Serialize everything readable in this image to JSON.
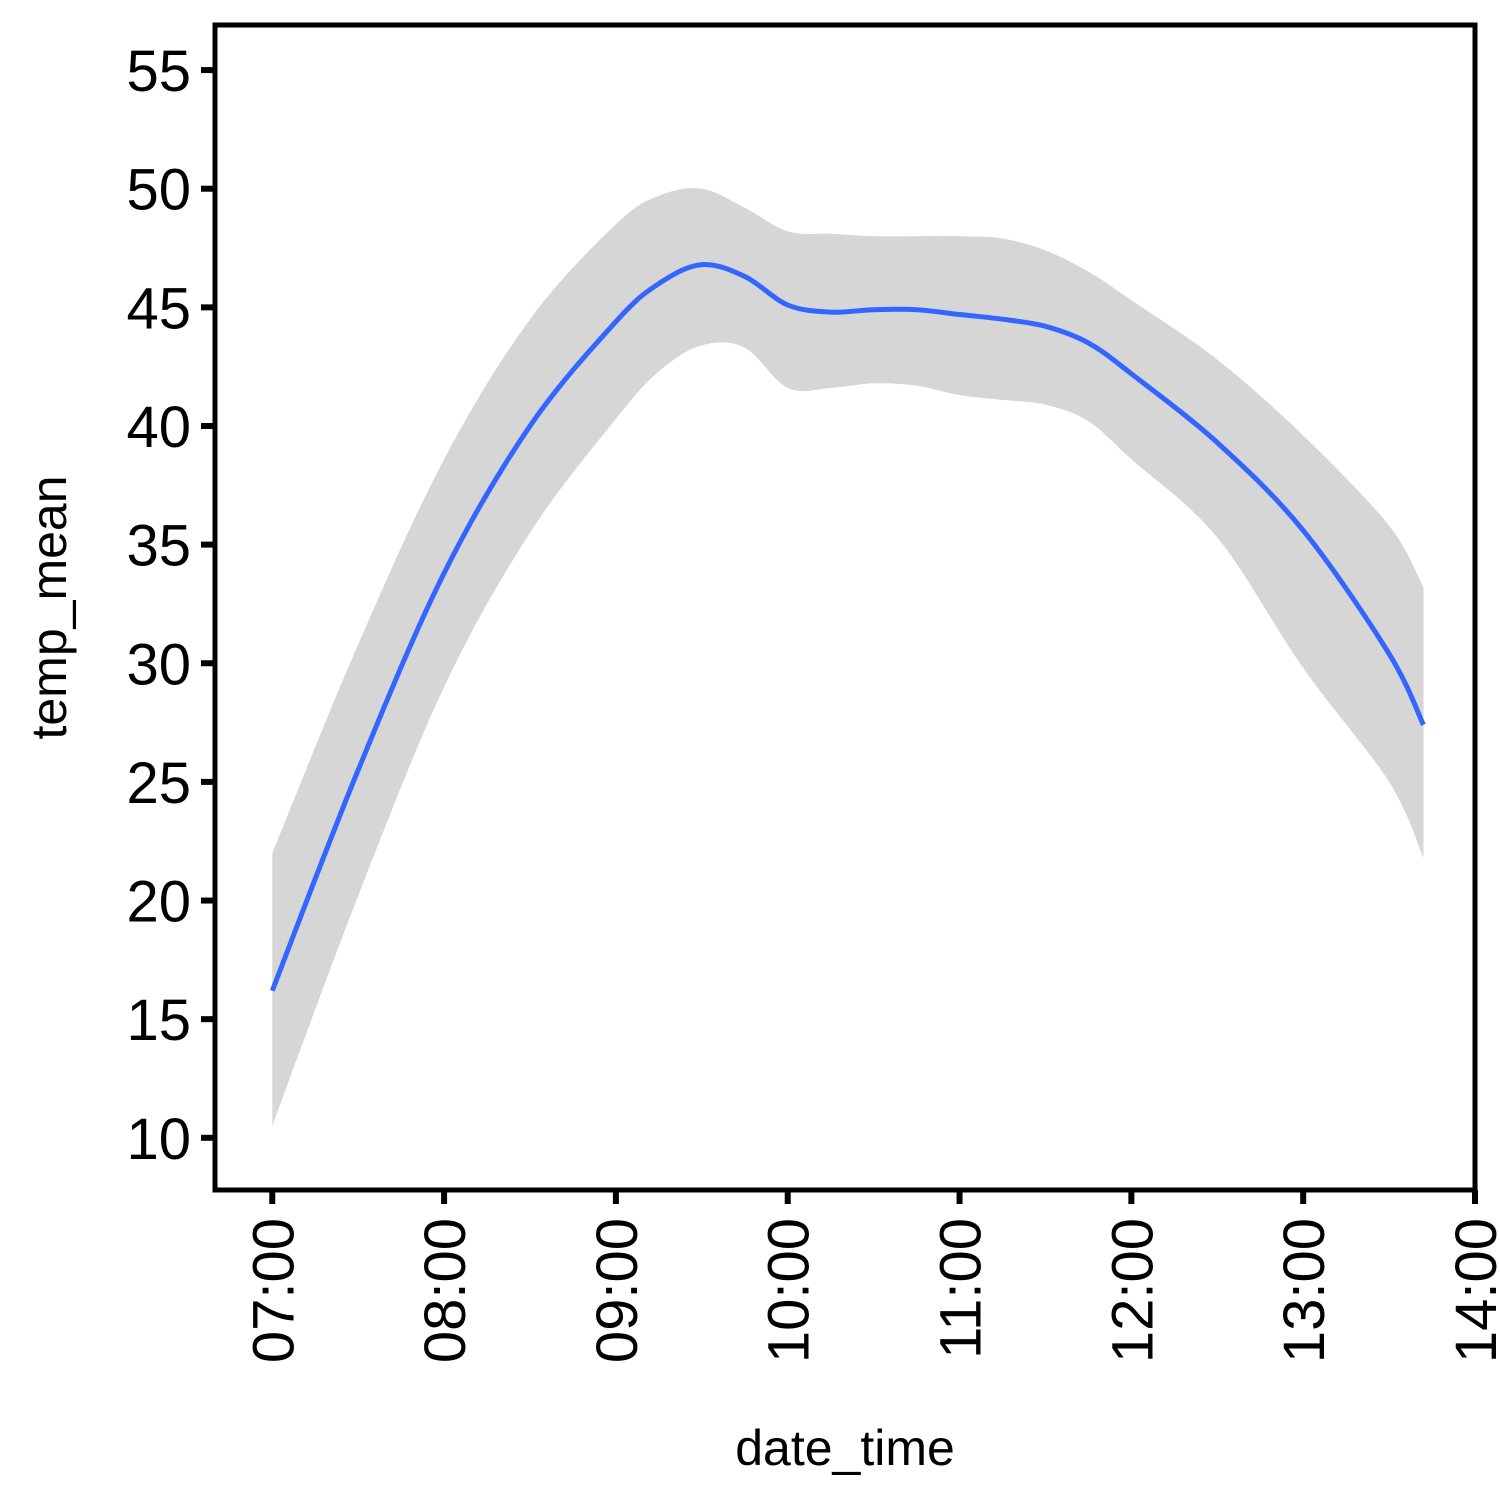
{
  "chart_data": {
    "type": "line",
    "title": "",
    "xlabel": "date_time",
    "ylabel": "temp_mean",
    "x_unit": "time of day",
    "xlim": [
      "06:40",
      "14:00"
    ],
    "ylim": [
      7.8,
      56.9
    ],
    "x_ticks": [
      "07:00",
      "08:00",
      "09:00",
      "10:00",
      "11:00",
      "12:00",
      "13:00",
      "14:00"
    ],
    "y_ticks": [
      10,
      15,
      20,
      25,
      30,
      35,
      40,
      45,
      50,
      55
    ],
    "grid": false,
    "legend": "none",
    "line_color": "#3366FF",
    "band_color": "#D6D6D6",
    "series": [
      {
        "x": [
          "07:00",
          "07:30",
          "08:00",
          "08:30",
          "09:00",
          "09:15",
          "09:30",
          "09:45",
          "10:00",
          "10:15",
          "10:30",
          "10:45",
          "11:00",
          "11:15",
          "11:30",
          "11:45",
          "12:00",
          "12:30",
          "13:00",
          "13:30",
          "13:42"
        ],
        "y": [
          16.2,
          25.5,
          33.8,
          40.0,
          44.4,
          46.0,
          46.8,
          46.3,
          45.1,
          44.8,
          44.9,
          44.9,
          44.7,
          44.5,
          44.2,
          43.5,
          42.2,
          39.3,
          35.6,
          30.4,
          27.4
        ],
        "lower": [
          10.5,
          20.2,
          29.0,
          35.5,
          40.3,
          42.3,
          43.4,
          43.3,
          41.6,
          41.6,
          41.8,
          41.7,
          41.3,
          41.1,
          40.9,
          40.2,
          38.6,
          35.3,
          29.8,
          25.0,
          21.8
        ],
        "upper": [
          22.0,
          30.8,
          38.6,
          44.5,
          48.5,
          49.7,
          50.0,
          49.2,
          48.2,
          48.1,
          48.0,
          48.0,
          48.0,
          47.9,
          47.4,
          46.5,
          45.3,
          42.8,
          39.6,
          35.8,
          33.2
        ]
      }
    ]
  }
}
